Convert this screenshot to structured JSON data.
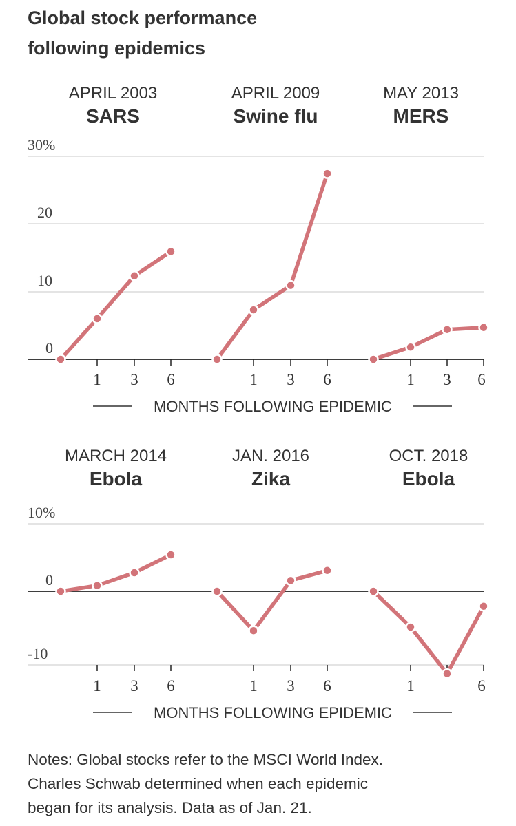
{
  "title": {
    "line1": "Global stock performance",
    "line2": "following epidemics"
  },
  "colors": {
    "series": "#d27479",
    "grid": "#dcdcdc",
    "zero": "#222222",
    "text": "#333333"
  },
  "x_axis_label": "MONTHS FOLLOWING EPIDEMIC",
  "notes": {
    "line1": "Notes: Global stocks refer to the MSCI World Index.",
    "line2": "Charles Schwab determined when each epidemic",
    "line3": "began for its analysis. Data as of Jan. 21."
  },
  "chart_data": [
    {
      "type": "line",
      "row": "top",
      "date": "APRIL 2003",
      "name": "SARS",
      "x": [
        0,
        1,
        3,
        6
      ],
      "values": [
        0,
        6,
        12.3,
        15.9
      ],
      "x_ticks": [
        "1",
        "3",
        "6"
      ],
      "y_ticks": [
        "30%",
        "20",
        "10",
        "0"
      ],
      "ylim": [
        0,
        30
      ]
    },
    {
      "type": "line",
      "row": "top",
      "date": "APRIL 2009",
      "name": "Swine flu",
      "x": [
        0,
        1,
        3,
        6
      ],
      "values": [
        0,
        7.3,
        10.9,
        27.4
      ],
      "x_ticks": [
        "1",
        "3",
        "6"
      ],
      "ylim": [
        0,
        30
      ]
    },
    {
      "type": "line",
      "row": "top",
      "date": "MAY 2013",
      "name": "MERS",
      "x": [
        0,
        1,
        3,
        6
      ],
      "values": [
        0,
        1.8,
        4.4,
        4.7
      ],
      "x_ticks": [
        "1",
        "3",
        "6"
      ],
      "ylim": [
        0,
        30
      ]
    },
    {
      "type": "line",
      "row": "bottom",
      "date": "MARCH 2014",
      "name": "Ebola",
      "x": [
        0,
        1,
        3,
        6
      ],
      "values": [
        0,
        0.8,
        2.6,
        5.1
      ],
      "x_ticks": [
        "1",
        "3",
        "6"
      ],
      "y_ticks": [
        "10%",
        "0",
        "-10"
      ],
      "ylim": [
        -10,
        10
      ]
    },
    {
      "type": "line",
      "row": "bottom",
      "date": "JAN. 2016",
      "name": "Zika",
      "x": [
        0,
        1,
        3,
        6
      ],
      "values": [
        0,
        -5.5,
        1.5,
        2.9
      ],
      "x_ticks": [
        "1",
        "3",
        "6"
      ],
      "ylim": [
        -10,
        10
      ]
    },
    {
      "type": "line",
      "row": "bottom",
      "date": "OCT. 2018",
      "name": "Ebola",
      "x": [
        0,
        1,
        3,
        6
      ],
      "values": [
        0,
        -5,
        -11.5,
        -2.1
      ],
      "x_ticks": [
        "1",
        "6"
      ],
      "ylim": [
        -10,
        10
      ]
    }
  ]
}
